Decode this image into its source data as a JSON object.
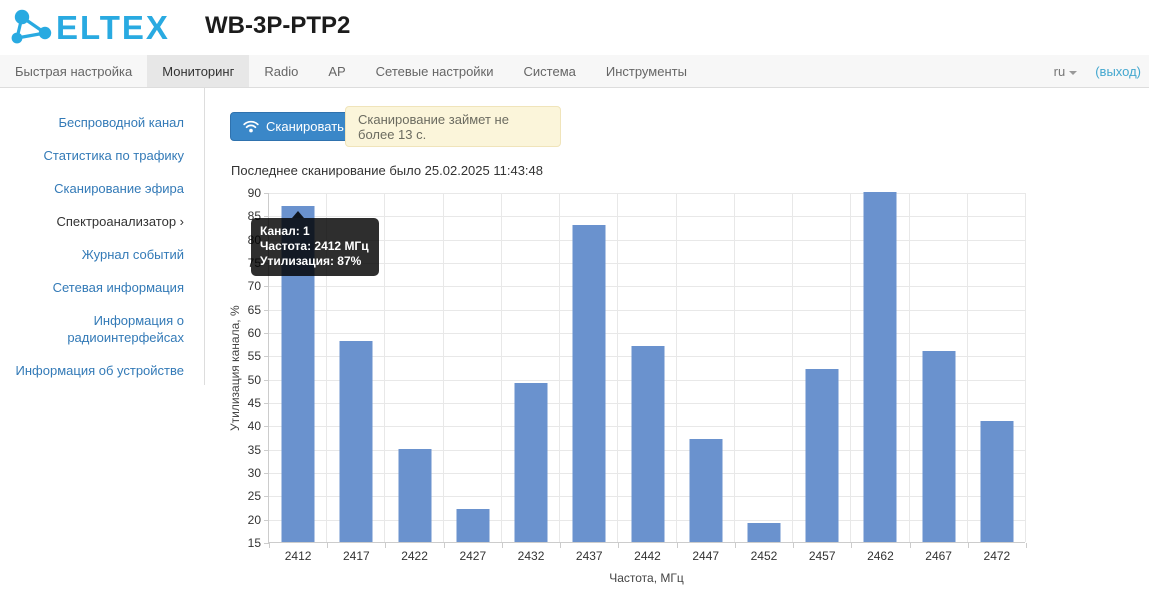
{
  "header": {
    "logo_text": "ELTEX",
    "device_title": "WB-3P-PTP2",
    "logo_color": "#29aae1"
  },
  "nav": {
    "tabs": [
      {
        "label": "Быстрая настройка",
        "active": false
      },
      {
        "label": "Мониторинг",
        "active": true
      },
      {
        "label": "Radio",
        "active": false
      },
      {
        "label": "AP",
        "active": false
      },
      {
        "label": "Сетевые настройки",
        "active": false
      },
      {
        "label": "Система",
        "active": false
      },
      {
        "label": "Инструменты",
        "active": false
      }
    ],
    "language": "ru",
    "logout_label": "(выход)"
  },
  "sidebar": {
    "items": [
      {
        "label": "Беспроводной канал",
        "active": false
      },
      {
        "label": "Статистика по трафику",
        "active": false
      },
      {
        "label": "Сканирование эфира",
        "active": false
      },
      {
        "label": "Спектроанализатор",
        "active": true,
        "chevron": "›"
      },
      {
        "label": "Журнал событий",
        "active": false
      },
      {
        "label": "Сетевая информация",
        "active": false
      },
      {
        "label": "Информация о радиоинтерфейсах",
        "active": false
      },
      {
        "label": "Информация об устройстве",
        "active": false
      }
    ]
  },
  "main": {
    "scan_button_label": "Сканировать",
    "scan_notice": "Сканирование займет не более 13 с.",
    "last_scan_text": "Последнее сканирование было 25.02.2025 11:43:48"
  },
  "tooltip": {
    "line1": "Канал: 1",
    "line2": "Частота: 2412 МГц",
    "line3": "Утилизация: 87%"
  },
  "chart_data": {
    "type": "bar",
    "categories": [
      "2412",
      "2417",
      "2422",
      "2427",
      "2432",
      "2437",
      "2442",
      "2447",
      "2452",
      "2457",
      "2462",
      "2467",
      "2472"
    ],
    "values": [
      87,
      58,
      35,
      22,
      49,
      83,
      57,
      37,
      19,
      52,
      90,
      56,
      41
    ],
    "title": "",
    "xlabel": "Частота, МГц",
    "ylabel": "Утилизация канала, %",
    "ylim": [
      15,
      90
    ],
    "ytick_step": 5,
    "bar_color": "#6a92ce",
    "grid": true,
    "legend": "none"
  },
  "colors": {
    "accent_blue": "#337ab7",
    "button_blue": "#3a87c8",
    "notice_bg": "#fbf5da",
    "tooltip_bg": "rgba(0,0,0,0.82)"
  }
}
